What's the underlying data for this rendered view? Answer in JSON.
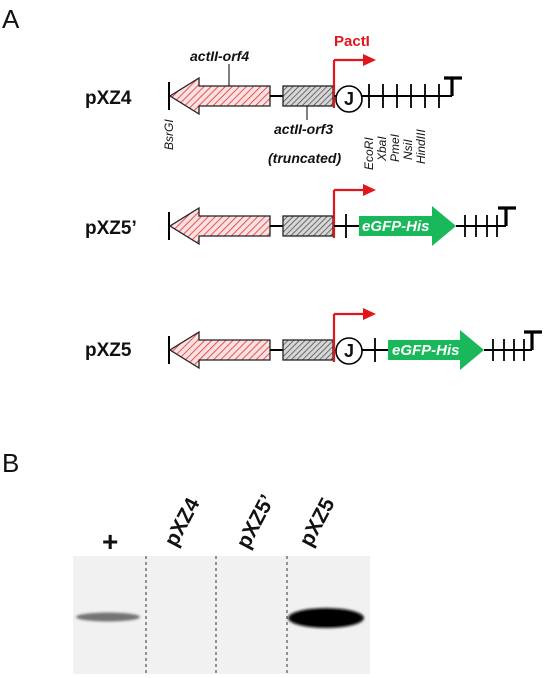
{
  "panels": {
    "a_letter": "A",
    "b_letter": "B"
  },
  "panel_a": {
    "constructs": [
      {
        "name": "pXZ4"
      },
      {
        "name": "pXZ5’"
      },
      {
        "name": "pXZ5"
      }
    ],
    "orf4_label": "actII-orf4",
    "orf3_label": "actII-orf3",
    "orf3_sublabel": "(truncated)",
    "promoter_label": "PactI",
    "j_label": "J",
    "egfp_label": "eGFP-His",
    "left_site": "BsrGI",
    "mcs_sites": [
      "EcoRI",
      "XbaI",
      "PmeI",
      "NsiI",
      "HindIII"
    ],
    "terminator": "T",
    "colors": {
      "orf4_hatch": "#e03030",
      "orf3_hatch": "#555555",
      "promoter": "#e0161b",
      "egfp": "#19b85a"
    }
  },
  "panel_b": {
    "lanes": [
      {
        "label": "+",
        "band_intensity": 0.45
      },
      {
        "label": "pXZ4",
        "band_intensity": 0
      },
      {
        "label": "pXZ5’",
        "band_intensity": 0
      },
      {
        "label": "pXZ5",
        "band_intensity": 1.0
      }
    ],
    "colors": {
      "blot_background": "#f1f1f1",
      "band": "#0a0a0a"
    }
  }
}
